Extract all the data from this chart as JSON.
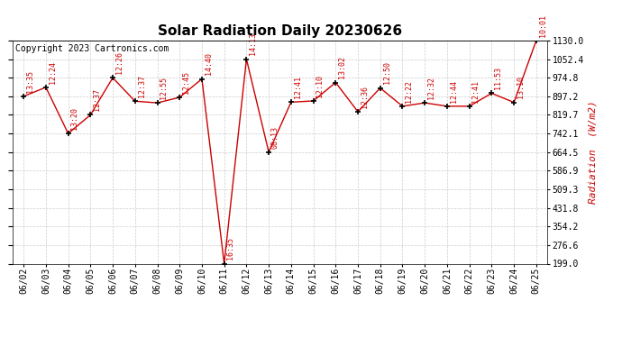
{
  "title": "Solar Radiation Daily 20230626",
  "copyright": "Copyright 2023 Cartronics.com",
  "ylabel_right": "Radiation  (W/m2)",
  "dates": [
    "06/02",
    "06/03",
    "06/04",
    "06/05",
    "06/06",
    "06/07",
    "06/08",
    "06/09",
    "06/10",
    "06/11",
    "06/12",
    "06/13",
    "06/14",
    "06/15",
    "06/16",
    "06/17",
    "06/18",
    "06/19",
    "06/20",
    "06/21",
    "06/22",
    "06/23",
    "06/24",
    "06/25"
  ],
  "values": [
    897.2,
    935.0,
    742.1,
    819.7,
    974.8,
    877.0,
    870.0,
    893.0,
    970.0,
    199.0,
    1052.4,
    664.5,
    873.0,
    878.0,
    955.0,
    833.0,
    932.0,
    856.0,
    870.0,
    856.0,
    856.0,
    910.0,
    872.0,
    1130.0
  ],
  "time_labels": [
    "13:35",
    "12:24",
    "13:20",
    "12:37",
    "12:26",
    "12:37",
    "12:55",
    "12:45",
    "14:40",
    "16:35",
    "14:13",
    "08:13",
    "12:41",
    "12:10",
    "13:02",
    "12:36",
    "12:50",
    "12:22",
    "12:32",
    "12:44",
    "12:41",
    "11:53",
    "13:10",
    "10:01"
  ],
  "ylim_min": 199.0,
  "ylim_max": 1130.0,
  "yticks": [
    199.0,
    276.6,
    354.2,
    431.8,
    509.3,
    586.9,
    664.5,
    742.1,
    819.7,
    897.2,
    974.8,
    1052.4,
    1130.0
  ],
  "line_color": "#cc0000",
  "marker_color": "#000000",
  "bg_color": "#ffffff",
  "grid_color": "#cccccc",
  "title_fontsize": 11,
  "tick_fontsize": 7,
  "time_label_fontsize": 6,
  "copyright_fontsize": 7,
  "ylabel_fontsize": 8
}
